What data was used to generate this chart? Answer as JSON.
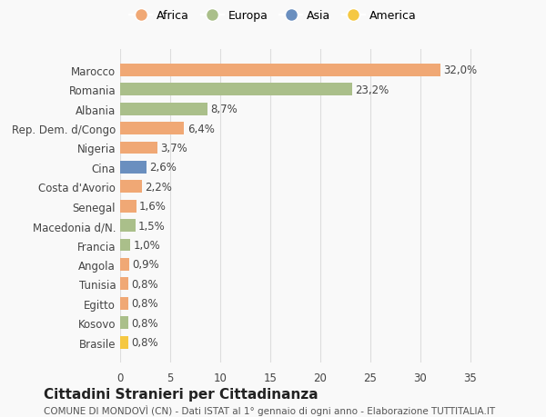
{
  "countries": [
    "Brasile",
    "Kosovo",
    "Egitto",
    "Tunisia",
    "Angola",
    "Francia",
    "Macedonia d/N.",
    "Senegal",
    "Costa d'Avorio",
    "Cina",
    "Nigeria",
    "Rep. Dem. d/Congo",
    "Albania",
    "Romania",
    "Marocco"
  ],
  "values": [
    0.8,
    0.8,
    0.8,
    0.8,
    0.9,
    1.0,
    1.5,
    1.6,
    2.2,
    2.6,
    3.7,
    6.4,
    8.7,
    23.2,
    32.0
  ],
  "labels": [
    "0,8%",
    "0,8%",
    "0,8%",
    "0,8%",
    "0,9%",
    "1,0%",
    "1,5%",
    "1,6%",
    "2,2%",
    "2,6%",
    "3,7%",
    "6,4%",
    "8,7%",
    "23,2%",
    "32,0%"
  ],
  "continents": [
    "America",
    "Europa",
    "Africa",
    "Africa",
    "Africa",
    "Europa",
    "Europa",
    "Africa",
    "Africa",
    "Asia",
    "Africa",
    "Africa",
    "Europa",
    "Europa",
    "Africa"
  ],
  "colors": {
    "Africa": "#F0A875",
    "Europa": "#AABF8A",
    "Asia": "#6A8FBF",
    "America": "#F5C842"
  },
  "legend_order": [
    "Africa",
    "Europa",
    "Asia",
    "America"
  ],
  "legend_colors": [
    "#F0A875",
    "#AABF8A",
    "#6A8FBF",
    "#F5C842"
  ],
  "xlim": [
    0,
    36
  ],
  "xticks": [
    0,
    5,
    10,
    15,
    20,
    25,
    30,
    35
  ],
  "title": "Cittadini Stranieri per Cittadinanza",
  "subtitle": "COMUNE DI MONDOVÌ (CN) - Dati ISTAT al 1° gennaio di ogni anno - Elaborazione TUTTITALIA.IT",
  "background_color": "#f9f9f9",
  "bar_height": 0.65,
  "grid_color": "#dddddd",
  "label_fontsize": 8.5,
  "tick_fontsize": 8.5,
  "title_fontsize": 11,
  "subtitle_fontsize": 7.5
}
